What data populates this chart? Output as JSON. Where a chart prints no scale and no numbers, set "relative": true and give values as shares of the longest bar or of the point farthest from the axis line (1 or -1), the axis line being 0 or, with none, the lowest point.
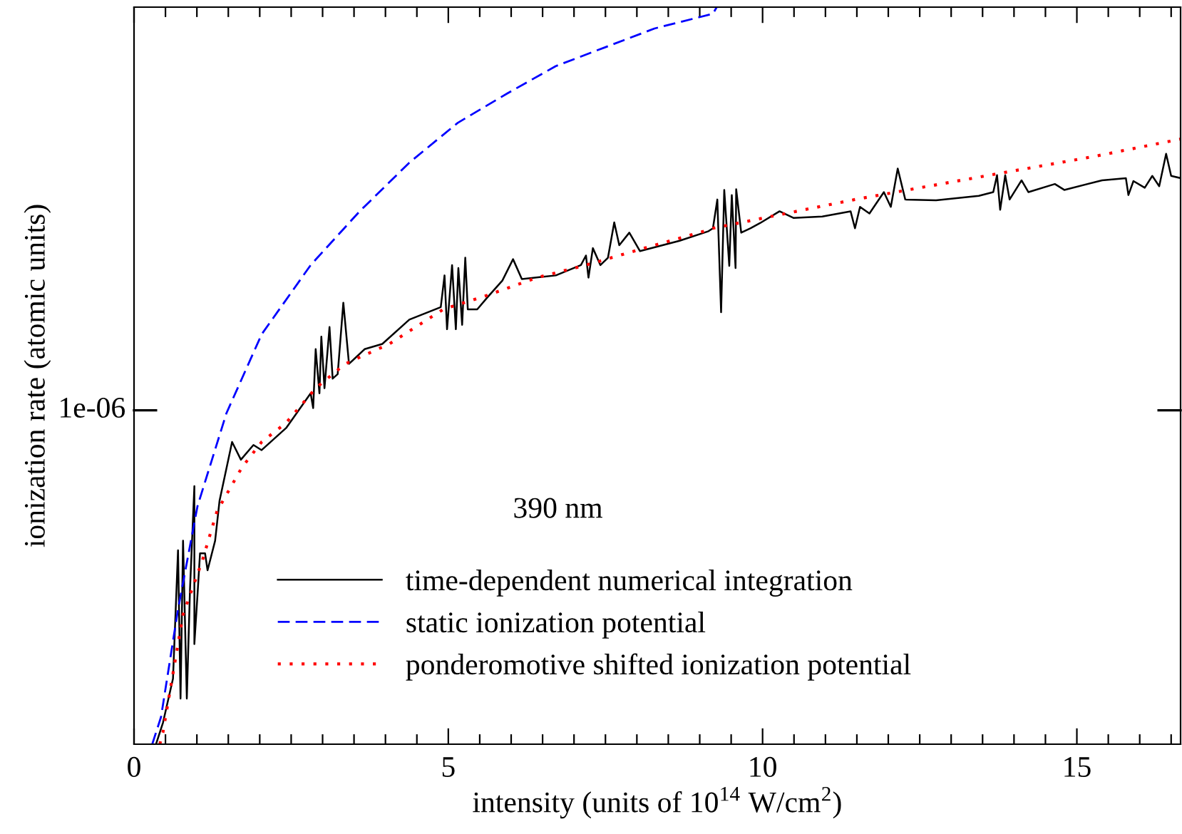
{
  "chart_data": {
    "type": "line",
    "relative": true,
    "xlabel": "intensity (units of 10$^{14}$ W/cm$^{2}$)",
    "ylabel": "ionization rate (atomic units)",
    "xlim": [
      0,
      16.65
    ],
    "xticks": [
      0,
      {
        "value": 0.5,
        "label": null
      },
      {
        "value": 1,
        "label": null
      },
      {
        "value": 1.5,
        "label": null
      },
      {
        "value": 2,
        "label": null
      },
      {
        "value": 2.5,
        "label": null
      },
      {
        "value": 3,
        "label": null
      },
      {
        "value": 3.5,
        "label": null
      },
      {
        "value": 4,
        "label": null
      },
      {
        "value": 4.5,
        "label": null
      },
      5,
      {
        "value": 5.5,
        "label": null
      },
      {
        "value": 6,
        "label": null
      },
      {
        "value": 6.5,
        "label": null
      },
      {
        "value": 7,
        "label": null
      },
      {
        "value": 7.5,
        "label": null
      },
      {
        "value": 8,
        "label": null
      },
      {
        "value": 8.5,
        "label": null
      },
      {
        "value": 9,
        "label": null
      },
      {
        "value": 9.5,
        "label": null
      },
      10,
      {
        "value": 10.5,
        "label": null
      },
      {
        "value": 11,
        "label": null
      },
      {
        "value": 11.5,
        "label": null
      },
      {
        "value": 12,
        "label": null
      },
      {
        "value": 12.5,
        "label": null
      },
      {
        "value": 13,
        "label": null
      },
      {
        "value": 13.5,
        "label": null
      },
      {
        "value": 14,
        "label": null
      },
      {
        "value": 14.5,
        "label": null
      },
      15,
      {
        "value": 15.5,
        "label": null
      },
      {
        "value": 16,
        "label": null
      },
      {
        "value": 16.5,
        "label": null
      }
    ],
    "legend": "bottom",
    "grid": false,
    "annotations": [
      "390 nm",
      "1e-06"
    ],
    "series": [
      {
        "name": "time-dependent numerical integration",
        "color": "#000000",
        "line_style": "solid",
        "x": [
          0.35,
          0.46,
          0.62,
          0.7,
          0.74,
          0.78,
          0.84,
          0.89,
          0.96,
          0.96,
          1.01,
          1.05,
          1.13,
          1.17,
          1.29,
          1.36,
          1.56,
          1.7,
          1.9,
          2.03,
          2.42,
          2.81,
          2.85,
          2.89,
          2.95,
          2.98,
          3.03,
          3.11,
          3.16,
          3.24,
          3.33,
          3.42,
          3.67,
          3.95,
          4.38,
          4.88,
          4.94,
          4.98,
          5.06,
          5.12,
          5.16,
          5.22,
          5.27,
          5.31,
          5.46,
          5.62,
          5.86,
          6.03,
          6.17,
          6.71,
          7.11,
          7.19,
          7.23,
          7.3,
          7.42,
          7.54,
          7.64,
          7.72,
          7.88,
          8.05,
          8.68,
          9.14,
          9.21,
          9.28,
          9.34,
          9.39,
          9.47,
          9.51,
          9.57,
          9.58,
          9.66,
          9.81,
          9.96,
          10.27,
          10.49,
          10.95,
          11.4,
          11.47,
          11.55,
          11.7,
          11.93,
          12.04,
          12.15,
          12.27,
          12.76,
          13.44,
          13.67,
          13.73,
          13.78,
          13.86,
          13.93,
          14.12,
          14.23,
          14.65,
          14.8,
          15.4,
          15.78,
          15.82,
          15.9,
          16.08,
          16.2,
          16.31,
          16.42,
          16.5,
          16.65
        ],
        "values": [
          0,
          0.029,
          0.089,
          0.263,
          0.062,
          0.276,
          0.062,
          0.209,
          0.35,
          0.136,
          0.203,
          0.259,
          0.259,
          0.236,
          0.276,
          0.33,
          0.41,
          0.386,
          0.406,
          0.399,
          0.429,
          0.476,
          0.456,
          0.536,
          0.476,
          0.553,
          0.483,
          0.566,
          0.496,
          0.502,
          0.599,
          0.516,
          0.536,
          0.543,
          0.576,
          0.593,
          0.636,
          0.563,
          0.65,
          0.563,
          0.646,
          0.569,
          0.66,
          0.59,
          0.59,
          0.606,
          0.629,
          0.658,
          0.631,
          0.636,
          0.65,
          0.663,
          0.633,
          0.673,
          0.65,
          0.66,
          0.708,
          0.677,
          0.694,
          0.669,
          0.683,
          0.696,
          0.7,
          0.739,
          0.586,
          0.752,
          0.649,
          0.745,
          0.646,
          0.753,
          0.694,
          0.7,
          0.707,
          0.723,
          0.714,
          0.716,
          0.723,
          0.7,
          0.729,
          0.72,
          0.749,
          0.729,
          0.781,
          0.739,
          0.738,
          0.744,
          0.749,
          0.772,
          0.725,
          0.772,
          0.739,
          0.765,
          0.749,
          0.76,
          0.752,
          0.765,
          0.768,
          0.745,
          0.764,
          0.755,
          0.771,
          0.757,
          0.801,
          0.771,
          0.768
        ]
      },
      {
        "name": "static ionization potential",
        "color": "#0000ff",
        "line_style": "dashed",
        "x": [
          0.29,
          0.43,
          0.7,
          1.01,
          1.47,
          2.03,
          2.81,
          3.59,
          4.38,
          5.15,
          5.94,
          6.71,
          7.51,
          8.28,
          9.21,
          9.27
        ],
        "values": [
          0,
          0.037,
          0.183,
          0.323,
          0.449,
          0.556,
          0.65,
          0.723,
          0.789,
          0.843,
          0.883,
          0.92,
          0.946,
          0.971,
          0.991,
          1.0
        ]
      },
      {
        "name": "ponderomotive shifted ionization potential",
        "color": "#ff0000",
        "line_style": "dotted",
        "x": [
          0.41,
          0.46,
          0.78,
          1.09,
          1.32,
          1.72,
          2.03,
          2.42,
          2.89,
          3.36,
          4.06,
          4.92,
          5.62,
          6.41,
          7.19,
          8.12,
          9.07,
          9.21,
          11.47,
          13.74,
          15.25,
          16.65
        ],
        "values": [
          0,
          0.016,
          0.176,
          0.25,
          0.316,
          0.376,
          0.41,
          0.436,
          0.483,
          0.516,
          0.543,
          0.59,
          0.609,
          0.633,
          0.65,
          0.673,
          0.696,
          0.7,
          0.739,
          0.774,
          0.797,
          0.821
        ]
      }
    ]
  }
}
